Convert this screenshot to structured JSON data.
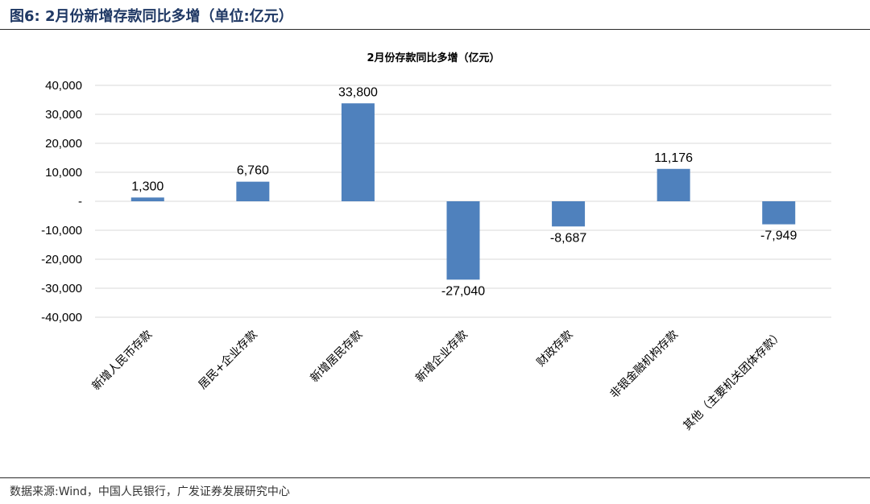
{
  "figure": {
    "title": "图6: 2月份新增存款同比多增（单位:亿元）",
    "source": "数据来源:Wind，中国人民银行，广发证券发展研究中心"
  },
  "colors": {
    "bar": "#4f81bd",
    "grid": "#d9d9d9",
    "title": "#1f3864"
  },
  "chart_data": {
    "type": "bar",
    "title": "2月份存款同比多增（亿元）",
    "categories": [
      "新增人民币存款",
      "居民+企业存款",
      "新增居民存款",
      "新增企业存款",
      "财政存款",
      "非银金融机构存款",
      "其他（主要机关团体存款）"
    ],
    "values": [
      1300,
      6760,
      33800,
      -27040,
      -8687,
      11176,
      -7949
    ],
    "value_labels": [
      "1,300",
      "6,760",
      "33,800",
      "-27,040",
      "-8,687",
      "11,176",
      "-7,949"
    ],
    "ylim": [
      -40000,
      40000
    ],
    "yticks": [
      40000,
      30000,
      20000,
      10000,
      0,
      -10000,
      -20000,
      -30000,
      -40000
    ],
    "ytick_labels": [
      "40,000",
      "30,000",
      "20,000",
      "10,000",
      "-",
      "-10,000",
      "-20,000",
      "-30,000",
      "-40,000"
    ],
    "grid": true,
    "legend": "none"
  }
}
